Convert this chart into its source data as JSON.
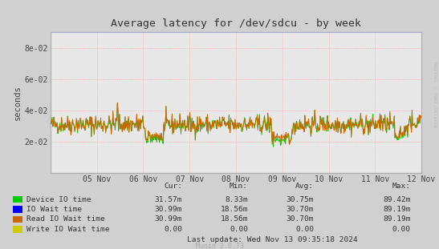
{
  "title": "Average latency for /dev/sdcu - by week",
  "ylabel": "seconds",
  "background_color": "#d0d0d0",
  "plot_bg_color": "#e8e8e8",
  "grid_color": "#ff9999",
  "ylim": [
    0,
    0.09
  ],
  "yticks": [
    0.02,
    0.04,
    0.06,
    0.08
  ],
  "ytick_labels": [
    "2e-02",
    "4e-02",
    "6e-02",
    "8e-02"
  ],
  "xtick_positions": [
    1,
    2,
    3,
    4,
    5,
    6,
    7,
    8
  ],
  "xtick_labels": [
    "05 Nov",
    "06 Nov",
    "07 Nov",
    "08 Nov",
    "09 Nov",
    "10 Nov",
    "11 Nov",
    "12 Nov"
  ],
  "color_green": "#00cc00",
  "color_blue": "#0000ff",
  "color_orange": "#cc6600",
  "color_yellow": "#cccc00",
  "legend_items": [
    {
      "label": "Device IO time",
      "color": "#00cc00"
    },
    {
      "label": "IO Wait time",
      "color": "#0000ff"
    },
    {
      "label": "Read IO Wait time",
      "color": "#cc6600"
    },
    {
      "label": "Write IO Wait time",
      "color": "#cccc00"
    }
  ],
  "legend_stats": {
    "headers": [
      "Cur:",
      "Min:",
      "Avg:",
      "Max:"
    ],
    "rows": [
      [
        "31.57m",
        "8.33m",
        "30.75m",
        "89.42m"
      ],
      [
        "30.99m",
        "18.56m",
        "30.70m",
        "89.19m"
      ],
      [
        "30.99m",
        "18.56m",
        "30.70m",
        "89.19m"
      ],
      [
        "0.00",
        "0.00",
        "0.00",
        "0.00"
      ]
    ]
  },
  "last_update": "Last update: Wed Nov 13 09:35:18 2024",
  "watermark": "Munin 2.0.73",
  "rrdtool_label": "RRDTOOL / TOBI OETIKER",
  "seed": 42
}
